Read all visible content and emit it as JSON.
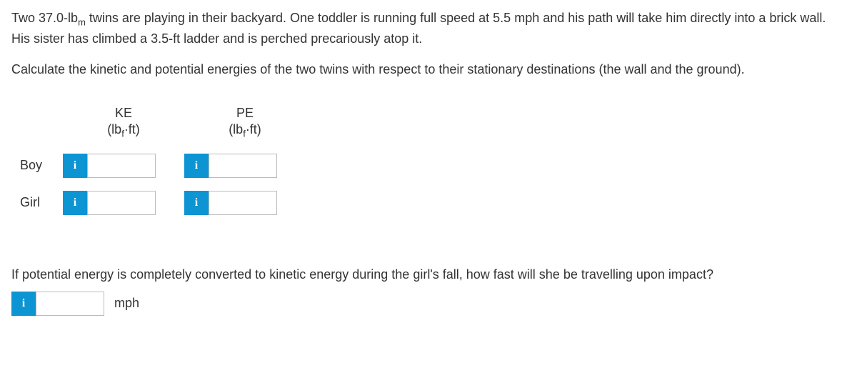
{
  "problem": {
    "line1_part1": "Two 37.0-lb",
    "line1_sub": "m",
    "line1_part2": " twins are playing in their backyard. One toddler is running full speed at 5.5 mph and his path will take him directly into a brick wall. His sister has climbed a 3.5-ft ladder and is perched precariously atop it.",
    "instruction": "Calculate the kinetic and potential energies of the two twins with respect to their stationary destinations (the wall and the ground)."
  },
  "table": {
    "col1_label": "KE",
    "col1_unit_pre": "(lb",
    "col1_unit_sub": "f",
    "col1_unit_post": "·ft)",
    "col2_label": "PE",
    "col2_unit_pre": "(lb",
    "col2_unit_sub": "f",
    "col2_unit_post": "·ft)",
    "row1_label": "Boy",
    "row2_label": "Girl"
  },
  "info_glyph": "i",
  "inputs": {
    "boy_ke": "",
    "boy_pe": "",
    "girl_ke": "",
    "girl_pe": "",
    "impact_speed": ""
  },
  "followup": {
    "question": "If potential energy is completely converted to kinetic energy during the girl's fall, how fast will she be travelling upon impact?",
    "unit": "mph"
  },
  "colors": {
    "info_bg": "#0d94d2",
    "text": "#333333",
    "border": "#bbbbbb",
    "background": "#ffffff"
  }
}
